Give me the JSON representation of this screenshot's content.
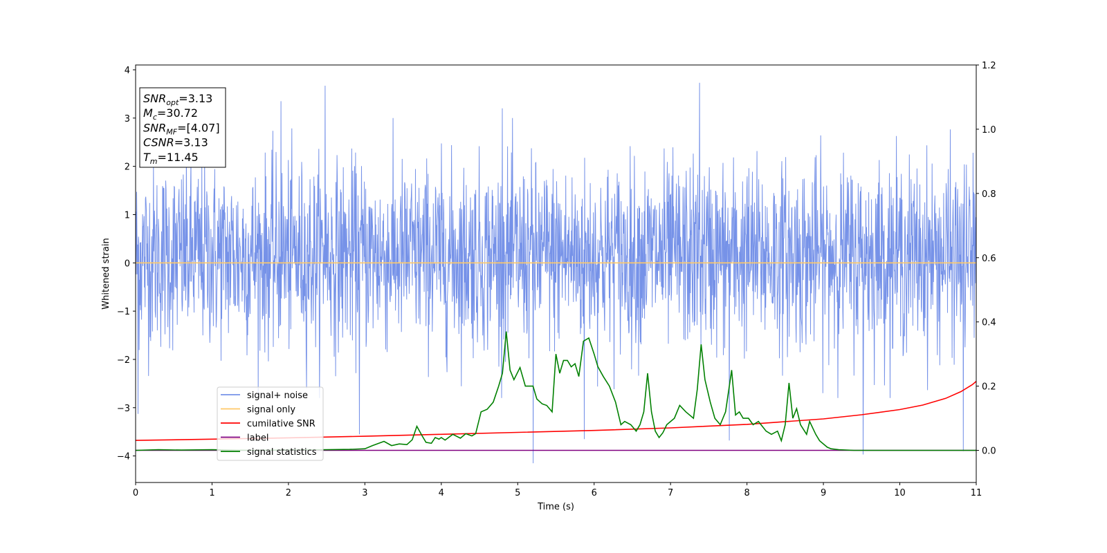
{
  "chart_data": {
    "type": "line",
    "xlabel": "Time (s)",
    "ylabel": "Whitened strain",
    "xlim": [
      0,
      11
    ],
    "ylim": [
      -4.55,
      4.1
    ],
    "y2lim": [
      -0.1,
      1.2
    ],
    "x_ticks": [
      "0",
      "1",
      "2",
      "3",
      "4",
      "5",
      "6",
      "7",
      "8",
      "9",
      "10",
      "11"
    ],
    "y_ticks": [
      "−4",
      "−3",
      "−2",
      "−1",
      "0",
      "1",
      "2",
      "3",
      "4"
    ],
    "y2_ticks": [
      "0.0",
      "0.2",
      "0.4",
      "0.6",
      "0.8",
      "1.0",
      "1.2"
    ],
    "legend_position": "lower-left",
    "series": [
      {
        "name": "signal+ noise",
        "color": "#7692e8",
        "axis": "left",
        "note_style": "dense noise",
        "envelope_typical": [
          -1.6,
          2.0
        ],
        "spikes": [
          {
            "x": 2.48,
            "y": 3.67
          },
          {
            "x": 7.38,
            "y": 3.73
          },
          {
            "x": 1.9,
            "y": 3.35
          },
          {
            "x": 4.8,
            "y": 3.2
          },
          {
            "x": 5.2,
            "y": -4.15
          },
          {
            "x": 9.52,
            "y": -3.97
          },
          {
            "x": 10.83,
            "y": -3.9
          },
          {
            "x": 0.03,
            "y": -3.13
          },
          {
            "x": 2.93,
            "y": -3.55
          },
          {
            "x": 5.87,
            "y": -3.65
          },
          {
            "x": 7.77,
            "y": -3.68
          }
        ]
      },
      {
        "name": "signal only",
        "color": "#ffc966",
        "axis": "left",
        "x": [
          0,
          11
        ],
        "y": [
          0,
          0
        ]
      },
      {
        "name": "cumilative SNR",
        "color": "#ff0000",
        "axis": "right",
        "x": [
          0,
          1,
          2,
          3,
          4,
          5,
          6,
          7,
          8,
          9,
          9.5,
          10,
          10.3,
          10.6,
          10.8,
          10.95,
          11.0
        ],
        "y": [
          0.031,
          0.035,
          0.039,
          0.044,
          0.05,
          0.056,
          0.062,
          0.07,
          0.081,
          0.098,
          0.111,
          0.127,
          0.141,
          0.162,
          0.183,
          0.205,
          0.215
        ]
      },
      {
        "name": "label",
        "color": "#800080",
        "axis": "right",
        "x": [
          0,
          11
        ],
        "y": [
          0,
          0
        ]
      },
      {
        "name": "signal statistics",
        "color": "#008000",
        "axis": "right",
        "x": [
          0,
          0.3,
          0.6,
          1.0,
          1.5,
          2.0,
          2.5,
          2.8,
          3.0,
          3.1,
          3.25,
          3.35,
          3.45,
          3.55,
          3.62,
          3.68,
          3.75,
          3.8,
          3.87,
          3.92,
          3.97,
          4.0,
          4.05,
          4.15,
          4.25,
          4.32,
          4.4,
          4.45,
          4.52,
          4.6,
          4.68,
          4.75,
          4.8,
          4.85,
          4.9,
          4.95,
          5.03,
          5.1,
          5.2,
          5.25,
          5.32,
          5.38,
          5.45,
          5.5,
          5.55,
          5.6,
          5.65,
          5.7,
          5.75,
          5.8,
          5.86,
          5.93,
          6.0,
          6.05,
          6.12,
          6.2,
          6.28,
          6.35,
          6.4,
          6.48,
          6.55,
          6.6,
          6.65,
          6.7,
          6.75,
          6.8,
          6.85,
          6.9,
          6.95,
          7.05,
          7.12,
          7.2,
          7.3,
          7.35,
          7.4,
          7.45,
          7.52,
          7.58,
          7.65,
          7.72,
          7.8,
          7.85,
          7.9,
          7.95,
          8.02,
          8.08,
          8.15,
          8.25,
          8.32,
          8.4,
          8.45,
          8.5,
          8.55,
          8.6,
          8.65,
          8.7,
          8.78,
          8.82,
          8.9,
          8.95,
          9.0,
          9.05,
          9.1,
          9.2,
          9.4,
          9.7,
          10,
          11
        ],
        "y": [
          0,
          0.002,
          0.001,
          0.002,
          0.0,
          0.001,
          0.002,
          0.003,
          0.005,
          0.015,
          0.028,
          0.015,
          0.02,
          0.018,
          0.033,
          0.075,
          0.045,
          0.025,
          0.022,
          0.04,
          0.035,
          0.04,
          0.032,
          0.05,
          0.038,
          0.052,
          0.045,
          0.052,
          0.12,
          0.128,
          0.15,
          0.2,
          0.24,
          0.37,
          0.25,
          0.22,
          0.258,
          0.2,
          0.2,
          0.16,
          0.145,
          0.14,
          0.12,
          0.3,
          0.24,
          0.28,
          0.28,
          0.26,
          0.27,
          0.23,
          0.34,
          0.35,
          0.3,
          0.26,
          0.23,
          0.2,
          0.15,
          0.08,
          0.09,
          0.08,
          0.06,
          0.08,
          0.12,
          0.24,
          0.12,
          0.06,
          0.04,
          0.055,
          0.08,
          0.1,
          0.14,
          0.12,
          0.1,
          0.19,
          0.33,
          0.22,
          0.15,
          0.1,
          0.08,
          0.12,
          0.25,
          0.11,
          0.12,
          0.1,
          0.1,
          0.08,
          0.09,
          0.06,
          0.05,
          0.06,
          0.03,
          0.08,
          0.21,
          0.1,
          0.13,
          0.08,
          0.05,
          0.09,
          0.05,
          0.03,
          0.02,
          0.01,
          0.005,
          0.002,
          0.0,
          0.0,
          0.0,
          0.0
        ]
      }
    ],
    "info_box": [
      {
        "symbol": "SNR",
        "sub": "opt",
        "value": "=3.13"
      },
      {
        "symbol": "M",
        "sub": "c",
        "value": "=30.72"
      },
      {
        "symbol": "SNR",
        "sub": "MF",
        "value": "=[4.07]"
      },
      {
        "symbol": "CSNR",
        "sub": "",
        "value": "=3.13"
      },
      {
        "symbol": "T",
        "sub": "m",
        "value": "=11.45"
      }
    ]
  }
}
